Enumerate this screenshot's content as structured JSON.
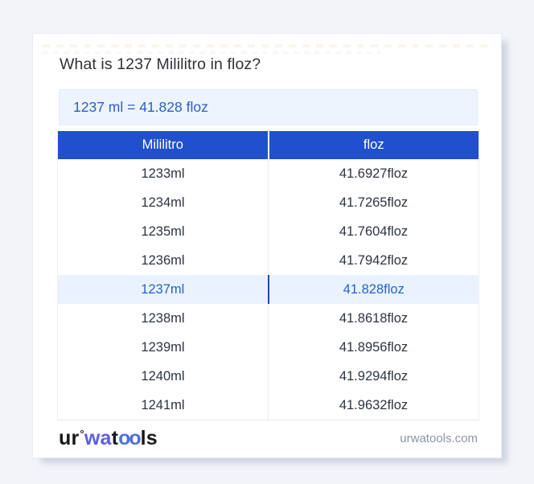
{
  "page": {
    "title": "What is 1237 Mililitro in floz?",
    "result": "1237 ml = 41.828 floz"
  },
  "table": {
    "headers": [
      "Mililitro",
      "floz"
    ],
    "highlight_index": 4,
    "rows": [
      {
        "ml": "1233ml",
        "floz": "41.6927floz"
      },
      {
        "ml": "1234ml",
        "floz": "41.7265floz"
      },
      {
        "ml": "1235ml",
        "floz": "41.7604floz"
      },
      {
        "ml": "1236ml",
        "floz": "41.7942floz"
      },
      {
        "ml": "1237ml",
        "floz": "41.828floz"
      },
      {
        "ml": "1238ml",
        "floz": "41.8618floz"
      },
      {
        "ml": "1239ml",
        "floz": "41.8956floz"
      },
      {
        "ml": "1240ml",
        "floz": "41.9294floz"
      },
      {
        "ml": "1241ml",
        "floz": "41.9632floz"
      }
    ]
  },
  "footer": {
    "logo_parts": {
      "ur": "ur",
      "ring": "°",
      "wa": "wa",
      "t": "t",
      "oo": "oo",
      "ls": "ls"
    },
    "site": "urwatools.com"
  },
  "colors": {
    "accent": "#2150ce",
    "highlight_bg": "#eaf3fd",
    "highlight_text": "#2563c9",
    "result_text": "#2a5fc4",
    "logo_blue": "#5b5ee9"
  }
}
